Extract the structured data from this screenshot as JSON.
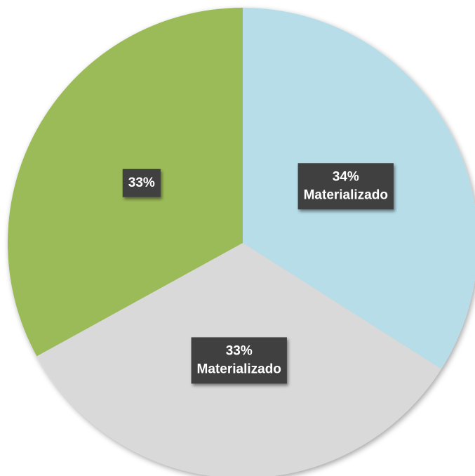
{
  "chart_data": {
    "type": "pie",
    "categories": [
      "Materializado",
      "Materializado",
      null
    ],
    "values": [
      34,
      33,
      33
    ],
    "colors": [
      "#b7dde8",
      "#d9d9d9",
      "#9bbb59"
    ],
    "value_labels": [
      "34%",
      "33%",
      "33%"
    ]
  }
}
